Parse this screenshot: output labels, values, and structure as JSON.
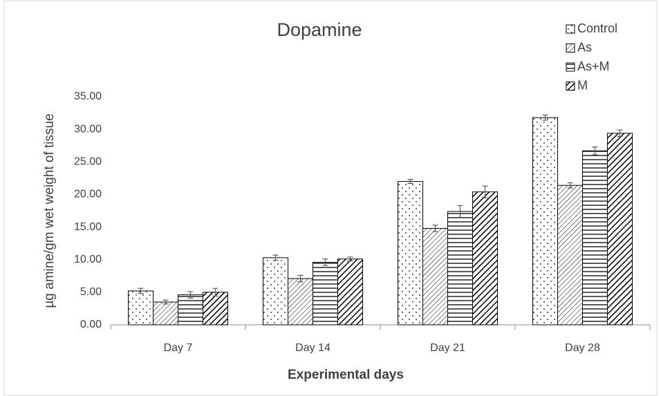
{
  "chart_data": {
    "type": "bar",
    "title": "Dopamine",
    "x_label": "Experimental days",
    "y_label": "µg amine/gm wet weight of tissue",
    "categories": [
      "Day 7",
      "Day 14",
      "Day 21",
      "Day 28"
    ],
    "series": [
      {
        "name": "Control",
        "color": "#000000",
        "pattern": "dots",
        "values": [
          5.2,
          10.3,
          22.0,
          31.8
        ],
        "errors": [
          0.4,
          0.4,
          0.3,
          0.4
        ]
      },
      {
        "name": "As",
        "color": "#000000",
        "pattern": "thin-diagonal",
        "values": [
          3.5,
          7.1,
          14.8,
          21.4
        ],
        "errors": [
          0.3,
          0.5,
          0.5,
          0.4
        ]
      },
      {
        "name": "As+M",
        "color": "#000000",
        "pattern": "horizontal",
        "values": [
          4.6,
          9.6,
          17.4,
          26.7
        ],
        "errors": [
          0.5,
          0.5,
          0.9,
          0.6
        ]
      },
      {
        "name": "M",
        "color": "#000000",
        "pattern": "thick-diagonal",
        "values": [
          5.0,
          10.1,
          20.4,
          29.4
        ],
        "errors": [
          0.6,
          0.3,
          0.9,
          0.5
        ]
      }
    ],
    "ylim": [
      0,
      35
    ],
    "yticks": [
      {
        "value": 0,
        "label": "0.00"
      },
      {
        "value": 5,
        "label": "5.00"
      },
      {
        "value": 10,
        "label": "10.00"
      },
      {
        "value": 15,
        "label": "15.00"
      },
      {
        "value": 20,
        "label": "20.00"
      },
      {
        "value": 25,
        "label": "25.00"
      },
      {
        "value": 30,
        "label": "30.00"
      },
      {
        "value": 35,
        "label": "35.00"
      }
    ],
    "grid": false,
    "legend": "top-right"
  }
}
